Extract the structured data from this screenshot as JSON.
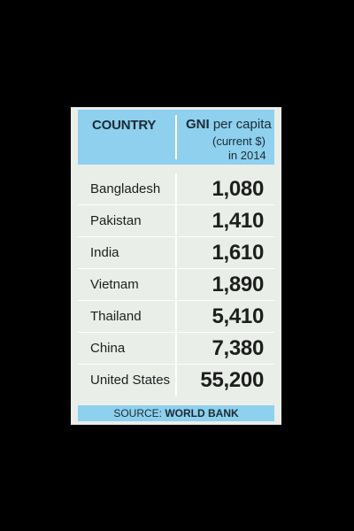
{
  "chart_data": {
    "type": "table",
    "headers": {
      "country": "COUNTRY",
      "gni_bold": "GNI",
      "gni_rest": " per capita",
      "gni_sub1": "(current $)",
      "gni_sub2": "in 2014"
    },
    "rows": [
      {
        "country": "Bangladesh",
        "value": 1080,
        "value_label": "1,080"
      },
      {
        "country": "Pakistan",
        "value": 1410,
        "value_label": "1,410"
      },
      {
        "country": "India",
        "value": 1610,
        "value_label": "1,610"
      },
      {
        "country": "Vietnam",
        "value": 1890,
        "value_label": "1,890"
      },
      {
        "country": "Thailand",
        "value": 5410,
        "value_label": "5,410"
      },
      {
        "country": "China",
        "value": 7380,
        "value_label": "7,380"
      },
      {
        "country": "United States",
        "value": 55200,
        "value_label": "55,200"
      }
    ],
    "source_prefix": "SOURCE:",
    "source_name": "WORLD BANK"
  },
  "colors": {
    "header_bg": "#8ed0ee",
    "body_bg": "#e9eee9",
    "page_bg": "#000000"
  }
}
